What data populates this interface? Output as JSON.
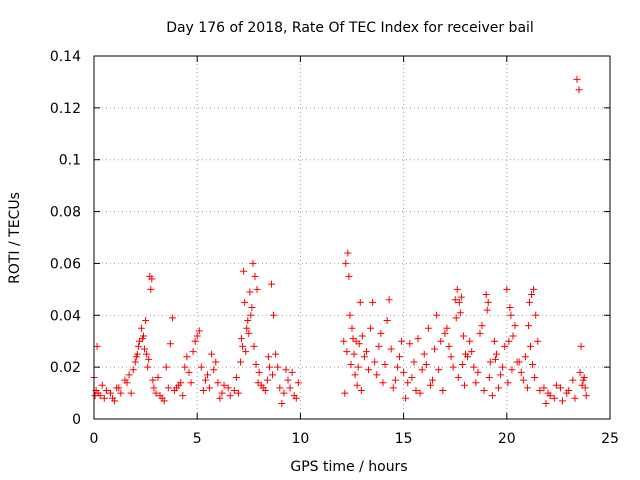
{
  "chart_data": {
    "type": "scatter",
    "title": "Day 176 of 2018, Rate Of TEC Index for receiver bail",
    "xlabel": "GPS time / hours",
    "ylabel": "ROTI / TECUs",
    "xlim": [
      0,
      25
    ],
    "ylim": [
      0,
      0.14
    ],
    "xticks": [
      0,
      5,
      10,
      15,
      20,
      25
    ],
    "xtick_labels": [
      "0",
      "5",
      "10",
      "15",
      "20",
      "25"
    ],
    "yticks": [
      0,
      0.02,
      0.04,
      0.06,
      0.08,
      0.1,
      0.12,
      0.14
    ],
    "ytick_labels": [
      "0",
      "0.02",
      "0.04",
      "0.06",
      "0.08",
      "0.1",
      "0.12",
      "0.14"
    ],
    "grid": true,
    "marker": "+",
    "color": "#ff0000",
    "series": [
      {
        "name": "ROTI",
        "x": [
          0.0,
          0.1,
          0.15,
          0.2,
          0.3,
          0.5,
          0.8,
          1.0,
          1.2,
          1.5,
          1.8,
          2.0,
          2.1,
          2.2,
          2.3,
          2.4,
          2.5,
          2.55,
          2.6,
          2.7,
          2.75,
          2.8,
          2.85,
          2.9,
          3.0,
          3.2,
          3.5,
          3.7,
          3.8,
          4.0,
          4.2,
          4.4,
          4.5,
          4.6,
          4.8,
          4.9,
          5.0,
          5.1,
          5.2,
          5.4,
          5.6,
          5.8,
          6.0,
          6.2,
          6.5,
          6.8,
          7.0,
          7.1,
          7.2,
          7.25,
          7.3,
          7.4,
          7.5,
          7.6,
          7.7,
          7.8,
          7.9,
          8.0,
          8.2,
          8.4,
          8.5,
          8.6,
          8.7,
          8.8,
          9.0,
          9.2,
          9.4,
          9.6,
          9.8,
          12.1,
          12.15,
          12.2,
          12.3,
          12.35,
          12.4,
          12.5,
          12.6,
          12.7,
          12.8,
          12.9,
          13.0,
          13.2,
          13.4,
          13.5,
          13.6,
          13.8,
          14.0,
          14.2,
          14.3,
          14.5,
          14.7,
          14.9,
          15.0,
          15.2,
          15.5,
          15.8,
          16.0,
          16.2,
          16.4,
          16.6,
          16.8,
          17.0,
          17.2,
          17.4,
          17.5,
          17.6,
          17.7,
          17.8,
          17.9,
          18.0,
          18.2,
          18.4,
          18.6,
          18.8,
          19.0,
          19.1,
          19.2,
          19.4,
          19.5,
          19.6,
          19.8,
          20.0,
          20.1,
          20.2,
          20.3,
          20.4,
          20.6,
          20.8,
          21.0,
          21.1,
          21.2,
          21.3,
          21.4,
          21.5,
          21.8,
          22.0,
          22.3,
          22.6,
          22.9,
          23.2,
          23.4,
          23.5,
          23.6,
          23.7,
          23.8,
          0.05,
          0.4,
          0.6,
          0.9,
          1.1,
          1.3,
          1.6,
          1.7,
          1.9,
          2.05,
          2.15,
          2.35,
          2.45,
          2.65,
          3.1,
          3.3,
          3.4,
          3.6,
          3.9,
          4.1,
          4.3,
          4.7,
          5.3,
          5.5,
          5.7,
          5.9,
          6.1,
          6.3,
          6.6,
          6.9,
          7.15,
          7.35,
          7.45,
          7.55,
          7.65,
          7.75,
          7.85,
          7.95,
          8.1,
          8.3,
          8.45,
          8.65,
          8.9,
          9.1,
          9.3,
          9.5,
          9.7,
          9.9,
          12.25,
          12.45,
          12.55,
          12.65,
          12.75,
          12.85,
          12.95,
          13.1,
          13.3,
          13.7,
          13.9,
          14.1,
          14.4,
          14.6,
          14.8,
          15.1,
          15.3,
          15.4,
          15.6,
          15.7,
          15.9,
          16.1,
          16.3,
          16.5,
          16.7,
          16.9,
          17.1,
          17.3,
          17.55,
          17.65,
          17.75,
          17.85,
          17.95,
          18.1,
          18.3,
          18.5,
          18.7,
          18.9,
          19.05,
          19.15,
          19.3,
          19.45,
          19.7,
          19.9,
          20.05,
          20.15,
          20.25,
          20.5,
          20.7,
          20.9,
          21.05,
          21.15,
          21.25,
          21.35,
          21.6,
          21.9,
          22.1,
          22.4,
          22.7,
          23.0,
          23.3,
          23.55,
          23.65,
          23.75,
          23.85
        ],
        "y": [
          0.016,
          0.011,
          0.028,
          0.01,
          0.009,
          0.008,
          0.01,
          0.007,
          0.012,
          0.015,
          0.01,
          0.022,
          0.025,
          0.03,
          0.035,
          0.032,
          0.038,
          0.025,
          0.02,
          0.055,
          0.05,
          0.054,
          0.015,
          0.012,
          0.01,
          0.009,
          0.02,
          0.029,
          0.039,
          0.012,
          0.014,
          0.02,
          0.024,
          0.018,
          0.026,
          0.03,
          0.032,
          0.034,
          0.02,
          0.015,
          0.012,
          0.019,
          0.014,
          0.01,
          0.012,
          0.011,
          0.01,
          0.022,
          0.028,
          0.057,
          0.045,
          0.035,
          0.033,
          0.04,
          0.06,
          0.055,
          0.05,
          0.018,
          0.012,
          0.015,
          0.02,
          0.052,
          0.04,
          0.025,
          0.012,
          0.01,
          0.015,
          0.018,
          0.008,
          0.03,
          0.01,
          0.06,
          0.064,
          0.055,
          0.04,
          0.035,
          0.025,
          0.03,
          0.02,
          0.045,
          0.032,
          0.026,
          0.035,
          0.045,
          0.022,
          0.028,
          0.014,
          0.038,
          0.046,
          0.012,
          0.02,
          0.03,
          0.018,
          0.014,
          0.022,
          0.01,
          0.025,
          0.035,
          0.015,
          0.04,
          0.03,
          0.033,
          0.028,
          0.02,
          0.046,
          0.05,
          0.045,
          0.047,
          0.032,
          0.025,
          0.03,
          0.02,
          0.018,
          0.036,
          0.048,
          0.045,
          0.022,
          0.03,
          0.025,
          0.012,
          0.02,
          0.05,
          0.03,
          0.04,
          0.032,
          0.036,
          0.022,
          0.015,
          0.012,
          0.045,
          0.048,
          0.05,
          0.04,
          0.03,
          0.012,
          0.01,
          0.008,
          0.012,
          0.01,
          0.015,
          0.131,
          0.127,
          0.028,
          0.015,
          0.012,
          0.009,
          0.013,
          0.011,
          0.008,
          0.012,
          0.01,
          0.014,
          0.017,
          0.019,
          0.024,
          0.028,
          0.031,
          0.027,
          0.023,
          0.016,
          0.008,
          0.007,
          0.012,
          0.011,
          0.013,
          0.009,
          0.014,
          0.011,
          0.017,
          0.025,
          0.022,
          0.008,
          0.013,
          0.009,
          0.016,
          0.031,
          0.026,
          0.038,
          0.049,
          0.043,
          0.028,
          0.021,
          0.014,
          0.013,
          0.011,
          0.024,
          0.017,
          0.02,
          0.006,
          0.019,
          0.012,
          0.009,
          0.014,
          0.026,
          0.021,
          0.031,
          0.017,
          0.013,
          0.029,
          0.011,
          0.024,
          0.019,
          0.017,
          0.033,
          0.021,
          0.027,
          0.015,
          0.024,
          0.008,
          0.029,
          0.016,
          0.011,
          0.031,
          0.019,
          0.021,
          0.013,
          0.027,
          0.019,
          0.011,
          0.035,
          0.024,
          0.039,
          0.016,
          0.041,
          0.021,
          0.013,
          0.024,
          0.026,
          0.014,
          0.033,
          0.011,
          0.042,
          0.016,
          0.009,
          0.023,
          0.017,
          0.028,
          0.014,
          0.043,
          0.019,
          0.022,
          0.018,
          0.024,
          0.036,
          0.028,
          0.021,
          0.016,
          0.011,
          0.006,
          0.009,
          0.013,
          0.007,
          0.011,
          0.008,
          0.018,
          0.013,
          0.016,
          0.009
        ]
      }
    ]
  }
}
